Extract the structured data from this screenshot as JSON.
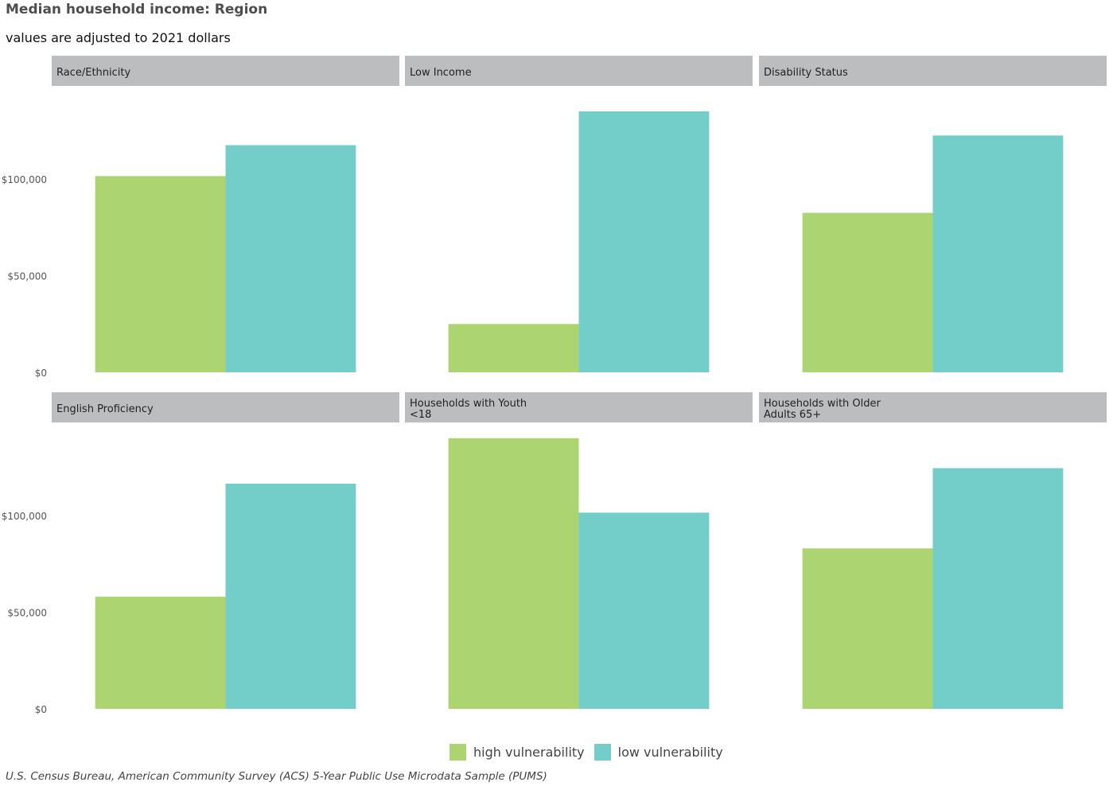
{
  "title": "Median household income: Region",
  "subtitle": "values are adjusted to 2021 dollars",
  "caption": "U.S. Census Bureau, American Community Survey (ACS) 5-Year Public Use Microdata Sample (PUMS)",
  "colors": {
    "high": "#acd572",
    "low": "#73cec9",
    "strip": "#bcbdbf"
  },
  "legend": {
    "high": "high vulnerability",
    "low": "low vulnerability"
  },
  "y_ticks": [
    "$0",
    "$50,000",
    "$100,000"
  ],
  "chart_data": {
    "type": "bar",
    "series_names": [
      "high vulnerability",
      "low vulnerability"
    ],
    "ylim": [
      0,
      140000
    ],
    "y_tick_values": [
      0,
      50000,
      100000
    ],
    "grid": false,
    "legend_position": "bottom",
    "panels": [
      {
        "name": [
          "Race/Ethnicity"
        ],
        "values": [
          101500,
          117500
        ]
      },
      {
        "name": [
          "Low Income"
        ],
        "values": [
          25000,
          135000
        ]
      },
      {
        "name": [
          "Disability Status"
        ],
        "values": [
          82500,
          122500
        ]
      },
      {
        "name": [
          "English Proficiency"
        ],
        "values": [
          58000,
          116500
        ]
      },
      {
        "name": [
          "Households with Youth",
          "<18"
        ],
        "values": [
          141000,
          101500
        ]
      },
      {
        "name": [
          "Households with Older",
          "Adults 65+"
        ],
        "values": [
          83000,
          124500
        ]
      }
    ]
  }
}
